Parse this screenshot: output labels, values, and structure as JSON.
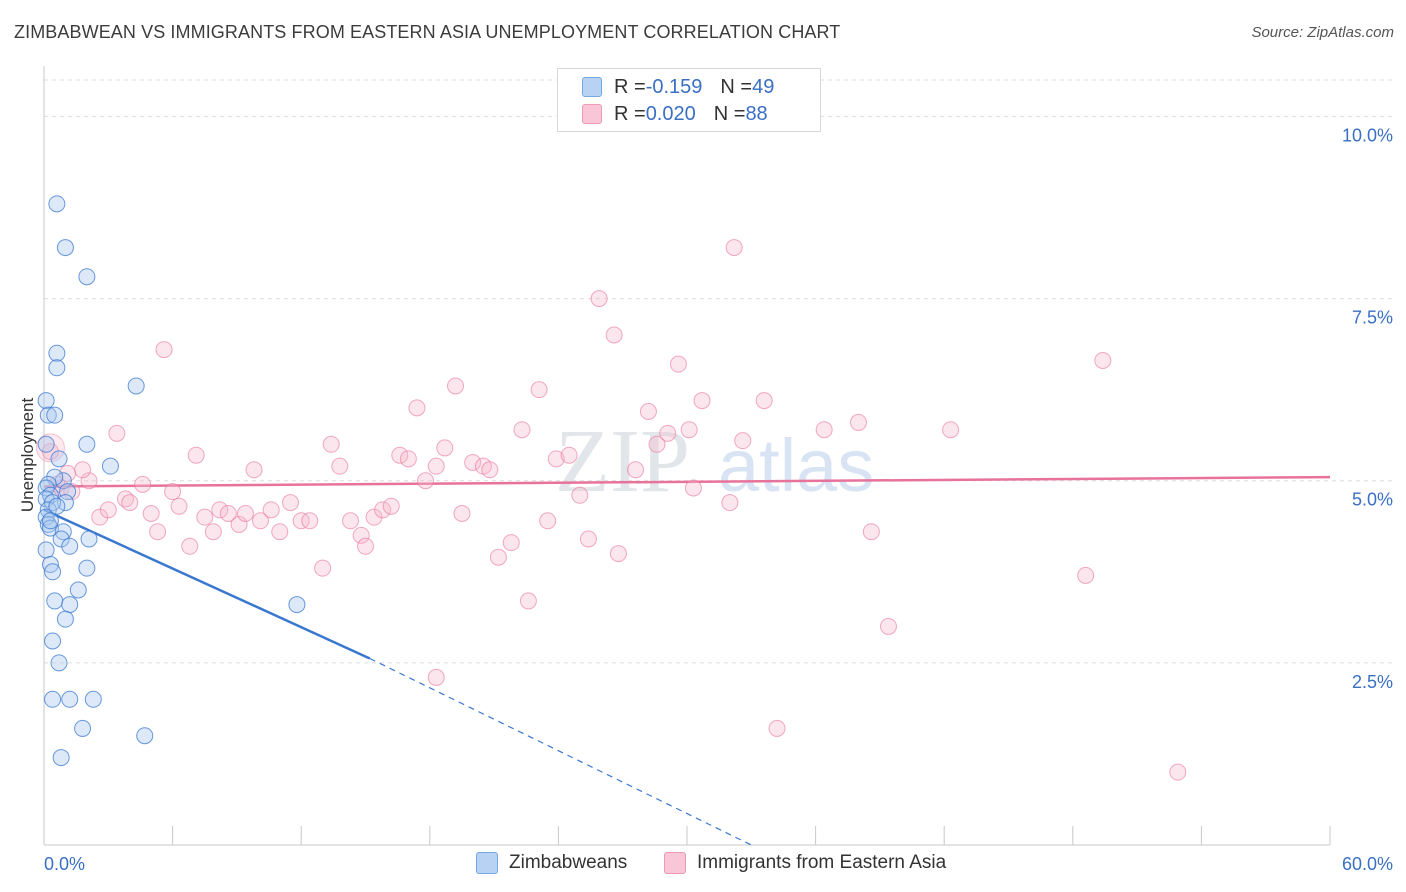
{
  "title": "ZIMBABWEAN VS IMMIGRANTS FROM EASTERN ASIA UNEMPLOYMENT CORRELATION CHART",
  "source": "Source: ZipAtlas.com",
  "watermark": {
    "zip": "ZIP",
    "atlas": "atlas"
  },
  "colors": {
    "blue": "#3a78d0",
    "blue_fill": "#a9c8f0",
    "pink": "#e8739a",
    "pink_fill": "#f5b8cb",
    "axis_text": "#3a6fc4",
    "grid": "#dcdcdc"
  },
  "legend": {
    "rows": [
      {
        "r_label": "R = ",
        "r_value": "-0.159",
        "n_label": "N = ",
        "n_value": "49"
      },
      {
        "r_label": "R = ",
        "r_value": "0.020",
        "n_label": "N = ",
        "n_value": "88"
      }
    ]
  },
  "bottom_legend": {
    "series_a": "Zimbabweans",
    "series_b": "Immigrants from Eastern Asia"
  },
  "chart_data": {
    "type": "scatter",
    "title": "ZIMBABWEAN VS IMMIGRANTS FROM EASTERN ASIA UNEMPLOYMENT CORRELATION CHART",
    "xlabel": "",
    "ylabel": "Unemployment",
    "xlim": [
      0,
      60
    ],
    "ylim": [
      0,
      10.5
    ],
    "x_tick_labels": [
      "0.0%",
      "60.0%"
    ],
    "y_ticks": [
      2.5,
      5.0,
      7.5,
      10.0
    ],
    "y_tick_labels": [
      "2.5%",
      "5.0%",
      "7.5%",
      "10.0%"
    ],
    "grid": true,
    "legend_position": "top-center",
    "series": [
      {
        "name": "Zimbabweans",
        "color": "#3a78d0",
        "points": [
          [
            0.6,
            8.8
          ],
          [
            1.0,
            8.2
          ],
          [
            2.0,
            7.8
          ],
          [
            0.6,
            6.75
          ],
          [
            0.6,
            6.55
          ],
          [
            4.3,
            6.3
          ],
          [
            0.1,
            6.1
          ],
          [
            0.2,
            5.9
          ],
          [
            0.5,
            5.9
          ],
          [
            2.0,
            5.5
          ],
          [
            0.1,
            5.5
          ],
          [
            0.7,
            5.3
          ],
          [
            3.1,
            5.2
          ],
          [
            0.9,
            5.0
          ],
          [
            0.5,
            5.05
          ],
          [
            0.2,
            4.95
          ],
          [
            0.1,
            4.9
          ],
          [
            1.1,
            4.85
          ],
          [
            0.3,
            4.8
          ],
          [
            0.1,
            4.75
          ],
          [
            1.0,
            4.7
          ],
          [
            0.4,
            4.7
          ],
          [
            0.2,
            4.6
          ],
          [
            0.1,
            4.5
          ],
          [
            0.2,
            4.4
          ],
          [
            0.3,
            4.35
          ],
          [
            0.9,
            4.3
          ],
          [
            2.1,
            4.2
          ],
          [
            0.8,
            4.2
          ],
          [
            1.2,
            4.1
          ],
          [
            0.1,
            4.05
          ],
          [
            0.3,
            3.85
          ],
          [
            0.4,
            3.75
          ],
          [
            2.0,
            3.8
          ],
          [
            1.6,
            3.5
          ],
          [
            0.5,
            3.35
          ],
          [
            1.2,
            3.3
          ],
          [
            11.8,
            3.3
          ],
          [
            1.0,
            3.1
          ],
          [
            0.4,
            2.8
          ],
          [
            0.7,
            2.5
          ],
          [
            0.4,
            2.0
          ],
          [
            1.2,
            2.0
          ],
          [
            2.3,
            2.0
          ],
          [
            1.8,
            1.6
          ],
          [
            4.7,
            1.5
          ],
          [
            0.8,
            1.2
          ],
          [
            0.3,
            4.45
          ],
          [
            0.6,
            4.65
          ]
        ],
        "trend": {
          "x": [
            0,
            15.2
          ],
          "y": [
            4.6,
            2.56
          ]
        },
        "trend_dashed": {
          "x": [
            15.2,
            33.0
          ],
          "y": [
            2.56,
            0.0
          ]
        }
      },
      {
        "name": "Immigrants from Eastern Asia",
        "color": "#e8739a",
        "points": [
          [
            0.3,
            5.4
          ],
          [
            2.1,
            5.0
          ],
          [
            0.8,
            4.9
          ],
          [
            1.3,
            4.85
          ],
          [
            1.8,
            5.15
          ],
          [
            3.4,
            5.65
          ],
          [
            2.6,
            4.5
          ],
          [
            3.0,
            4.6
          ],
          [
            3.8,
            4.75
          ],
          [
            4.6,
            4.95
          ],
          [
            4.0,
            4.7
          ],
          [
            5.0,
            4.55
          ],
          [
            5.3,
            4.3
          ],
          [
            5.6,
            6.8
          ],
          [
            6.0,
            4.85
          ],
          [
            6.3,
            4.65
          ],
          [
            6.8,
            4.1
          ],
          [
            7.1,
            5.35
          ],
          [
            7.5,
            4.5
          ],
          [
            7.9,
            4.3
          ],
          [
            8.2,
            4.6
          ],
          [
            8.6,
            4.55
          ],
          [
            9.1,
            4.4
          ],
          [
            9.4,
            4.55
          ],
          [
            9.8,
            5.15
          ],
          [
            10.1,
            4.45
          ],
          [
            10.6,
            4.6
          ],
          [
            11.0,
            4.3
          ],
          [
            11.5,
            4.7
          ],
          [
            12.0,
            4.45
          ],
          [
            12.4,
            4.45
          ],
          [
            13.0,
            3.8
          ],
          [
            13.4,
            5.5
          ],
          [
            13.8,
            5.2
          ],
          [
            14.3,
            4.45
          ],
          [
            14.8,
            4.25
          ],
          [
            15.0,
            4.1
          ],
          [
            15.4,
            4.5
          ],
          [
            15.8,
            4.6
          ],
          [
            16.2,
            4.65
          ],
          [
            16.6,
            5.35
          ],
          [
            17.0,
            5.3
          ],
          [
            17.4,
            6.0
          ],
          [
            17.8,
            5.0
          ],
          [
            18.3,
            5.2
          ],
          [
            18.7,
            5.45
          ],
          [
            19.2,
            6.3
          ],
          [
            19.5,
            4.55
          ],
          [
            20.0,
            5.25
          ],
          [
            20.5,
            5.2
          ],
          [
            20.8,
            5.15
          ],
          [
            21.2,
            3.95
          ],
          [
            21.8,
            4.15
          ],
          [
            22.3,
            5.7
          ],
          [
            22.6,
            3.35
          ],
          [
            23.1,
            6.25
          ],
          [
            23.5,
            4.45
          ],
          [
            23.9,
            5.3
          ],
          [
            24.5,
            5.35
          ],
          [
            25.0,
            4.8
          ],
          [
            25.4,
            4.2
          ],
          [
            25.9,
            7.5
          ],
          [
            26.6,
            7.0
          ],
          [
            26.8,
            4.0
          ],
          [
            27.6,
            5.15
          ],
          [
            28.2,
            5.95
          ],
          [
            28.6,
            5.5
          ],
          [
            29.1,
            5.65
          ],
          [
            29.6,
            6.6
          ],
          [
            30.1,
            5.7
          ],
          [
            30.3,
            4.9
          ],
          [
            30.7,
            6.1
          ],
          [
            32.0,
            4.7
          ],
          [
            32.2,
            8.2
          ],
          [
            32.6,
            5.55
          ],
          [
            33.6,
            6.1
          ],
          [
            34.2,
            1.6
          ],
          [
            36.4,
            5.7
          ],
          [
            38.0,
            5.8
          ],
          [
            38.6,
            4.3
          ],
          [
            39.4,
            3.0
          ],
          [
            42.3,
            5.7
          ],
          [
            18.3,
            2.3
          ],
          [
            48.6,
            3.7
          ],
          [
            49.4,
            6.65
          ],
          [
            52.9,
            1.0
          ],
          [
            1.1,
            5.1
          ],
          [
            0.6,
            4.95
          ]
        ],
        "trend": {
          "x": [
            0,
            60
          ],
          "y": [
            4.92,
            5.05
          ]
        }
      }
    ]
  }
}
